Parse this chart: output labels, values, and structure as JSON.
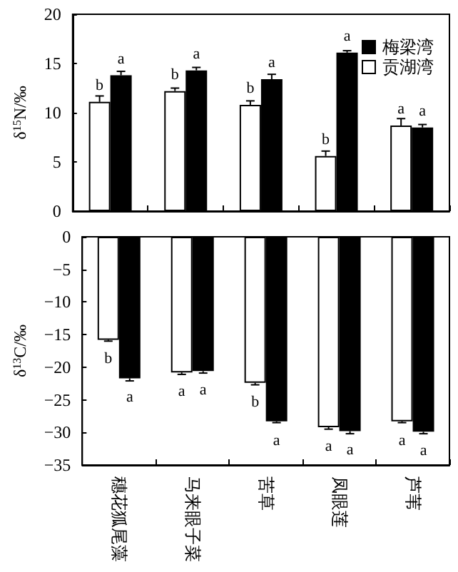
{
  "chart_data": [
    {
      "type": "bar",
      "ylabel": "δ$^{15}$N/‰",
      "categories": [
        null,
        null,
        null,
        null,
        null
      ],
      "series": [
        {
          "name": "贡湖湾",
          "color": "#ffffff",
          "values": [
            11.1,
            12.2,
            10.8,
            5.6,
            8.7
          ],
          "errors": [
            0.6,
            0.3,
            0.4,
            0.5,
            0.7
          ],
          "value_labels": [
            "b",
            "b",
            "b",
            "b",
            "a"
          ]
        },
        {
          "name": "梅梁湾",
          "color": "#000000",
          "values": [
            13.8,
            14.3,
            13.4,
            16.1,
            8.5
          ],
          "errors": [
            0.4,
            0.3,
            0.5,
            0.2,
            0.3
          ],
          "value_labels": [
            "a",
            "a",
            "a",
            "a",
            "a"
          ]
        }
      ],
      "ylim": [
        0,
        20
      ],
      "yticks": [
        0,
        5,
        10,
        15,
        20
      ],
      "grid": false,
      "legend": "top right",
      "tick_labels": "y"
    },
    {
      "type": "bar",
      "ylabel": "δ$^{13}$C/‰",
      "categories": [
        "穗花狐尾藻",
        "马来眼子菜",
        "苦草",
        "凤眼莲",
        "芦苇"
      ],
      "series": [
        {
          "color": "#ffffff",
          "values": [
            -15.8,
            -20.8,
            -22.4,
            -29.2,
            -28.3
          ],
          "errors": [
            0.2,
            0.3,
            0.3,
            0.3,
            0.2
          ],
          "value_labels": [
            "b",
            "a",
            "b",
            "a",
            "a"
          ]
        },
        {
          "color": "#000000",
          "values": [
            -21.7,
            -20.6,
            -28.3,
            -29.8,
            -29.9
          ],
          "errors": [
            0.4,
            0.3,
            0.2,
            0.4,
            0.3
          ],
          "value_labels": [
            "a",
            "a",
            "a",
            "a",
            "a"
          ]
        }
      ],
      "ylim": [
        -35,
        0
      ],
      "yticks": [
        -35,
        -30,
        -25,
        -20,
        -15,
        -10,
        -5,
        0
      ],
      "grid": false,
      "legend": false
    }
  ]
}
